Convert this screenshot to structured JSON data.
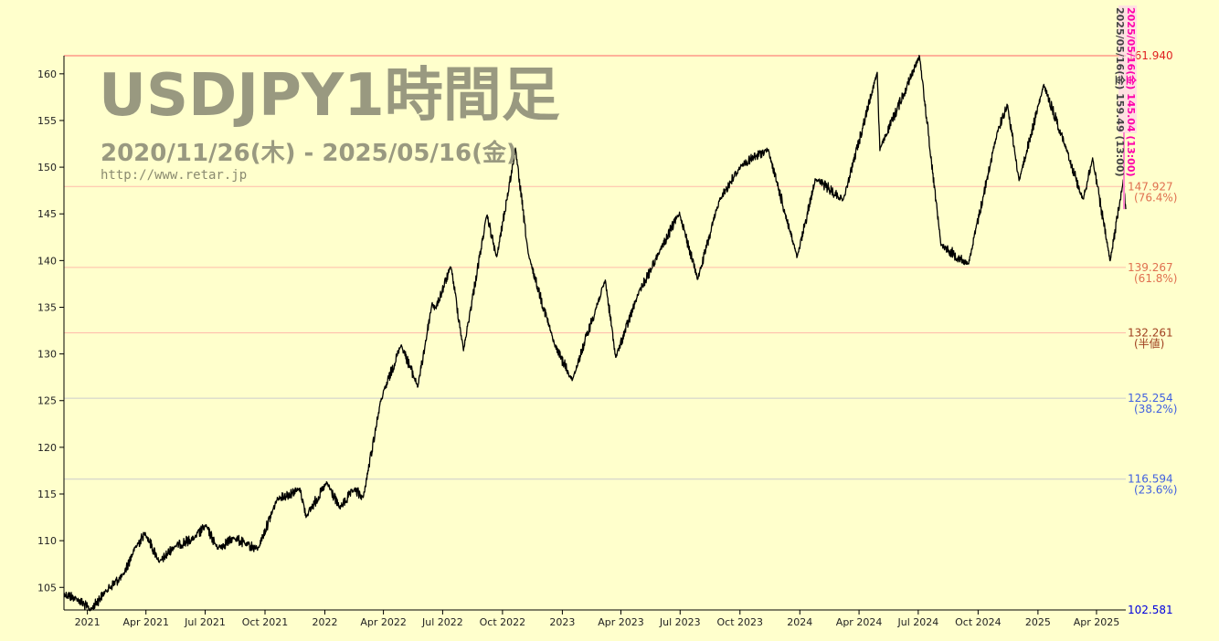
{
  "header": {
    "title": "USDJPY1時間足",
    "period": "2020/11/26(木) - 2025/05/16(金)",
    "site": "http://www.retar.jp"
  },
  "colors": {
    "background": "#ffffcc",
    "price_line": "#000000",
    "high_line": "#ff6666",
    "fib_warm": "#ff8866",
    "fib_mid": "#ffbbaa",
    "fib_cool": "#aaaacc",
    "pct_red": "#e06040",
    "pct_brown": "#a05030",
    "pct_blue": "#4060e0",
    "low_blue": "#0000dd",
    "marker_pink": "#ff00aa"
  },
  "marker_labels": [
    "2025/05/16(金) 159.49  (13:00)",
    "2025/05/16(金) 145.04  (13:00)"
  ],
  "chart_data": {
    "type": "line",
    "title": "USDJPY1時間足",
    "subtitle": "2020/11/26(木) - 2025/05/16(金)",
    "xlabel": "",
    "ylabel": "",
    "x_range": [
      "2020-11-26",
      "2025-05-16"
    ],
    "ylim": [
      102.581,
      161.94
    ],
    "grid": false,
    "y_ticks": [
      105,
      110,
      115,
      120,
      125,
      130,
      135,
      140,
      145,
      150,
      155,
      160
    ],
    "x_ticks": [
      {
        "date": "2021-01-01",
        "label": "2021"
      },
      {
        "date": "2021-04-01",
        "label": "Apr 2021"
      },
      {
        "date": "2021-07-01",
        "label": "Jul 2021"
      },
      {
        "date": "2021-10-01",
        "label": "Oct 2021"
      },
      {
        "date": "2022-01-01",
        "label": "2022"
      },
      {
        "date": "2022-04-01",
        "label": "Apr 2022"
      },
      {
        "date": "2022-07-01",
        "label": "Jul 2022"
      },
      {
        "date": "2022-10-01",
        "label": "Oct 2022"
      },
      {
        "date": "2023-01-01",
        "label": "2023"
      },
      {
        "date": "2023-04-01",
        "label": "Apr 2023"
      },
      {
        "date": "2023-07-01",
        "label": "Jul 2023"
      },
      {
        "date": "2023-10-01",
        "label": "Oct 2023"
      },
      {
        "date": "2024-01-01",
        "label": "2024"
      },
      {
        "date": "2024-04-01",
        "label": "Apr 2024"
      },
      {
        "date": "2024-07-01",
        "label": "Jul 2024"
      },
      {
        "date": "2024-10-01",
        "label": "Oct 2024"
      },
      {
        "date": "2025-01-01",
        "label": "2025"
      },
      {
        "date": "2025-04-01",
        "label": "Apr 2025"
      }
    ],
    "levels": [
      {
        "value": 161.94,
        "price_label": "161.940",
        "pct_label": "",
        "price_color": "#e02020",
        "line_color": "#ff6666"
      },
      {
        "value": 147.927,
        "price_label": "147.927",
        "pct_label": "(76.4%)",
        "price_color": "#e07050",
        "line_color": "#ffbbaa"
      },
      {
        "value": 139.267,
        "price_label": "139.267",
        "pct_label": "(61.8%)",
        "price_color": "#e07050",
        "line_color": "#ffbbaa"
      },
      {
        "value": 132.261,
        "price_label": "132.261",
        "pct_label": "(半値)",
        "price_color": "#a04020",
        "line_color": "#ffbbaa"
      },
      {
        "value": 125.254,
        "price_label": "125.254",
        "pct_label": "(38.2%)",
        "price_color": "#4060e0",
        "line_color": "#cccccc"
      },
      {
        "value": 116.594,
        "price_label": "116.594",
        "pct_label": "(23.6%)",
        "price_color": "#4060e0",
        "line_color": "#cccccc"
      },
      {
        "value": 102.581,
        "price_label": "102.581",
        "pct_label": "",
        "price_color": "#0000dd",
        "line_color": "#000000"
      }
    ],
    "series": [
      {
        "color": "#000000",
        "points": [
          [
            "2020-11-26",
            104.3
          ],
          [
            "2020-12-15",
            103.8
          ],
          [
            "2021-01-06",
            102.6
          ],
          [
            "2021-01-29",
            104.6
          ],
          [
            "2021-02-25",
            106.3
          ],
          [
            "2021-03-15",
            109.2
          ],
          [
            "2021-03-31",
            110.8
          ],
          [
            "2021-04-22",
            107.7
          ],
          [
            "2021-05-15",
            109.4
          ],
          [
            "2021-06-15",
            110.3
          ],
          [
            "2021-07-02",
            111.6
          ],
          [
            "2021-07-20",
            109.2
          ],
          [
            "2021-08-15",
            110.3
          ],
          [
            "2021-09-02",
            109.6
          ],
          [
            "2021-09-20",
            109.1
          ],
          [
            "2021-10-20",
            114.5
          ],
          [
            "2021-11-24",
            115.5
          ],
          [
            "2021-12-03",
            112.6
          ],
          [
            "2022-01-04",
            116.2
          ],
          [
            "2022-01-24",
            113.5
          ],
          [
            "2022-02-15",
            115.5
          ],
          [
            "2022-03-01",
            114.6
          ],
          [
            "2022-03-28",
            125.0
          ],
          [
            "2022-04-28",
            131.0
          ],
          [
            "2022-05-24",
            126.5
          ],
          [
            "2022-06-15",
            135.5
          ],
          [
            "2022-06-20",
            134.8
          ],
          [
            "2022-07-14",
            139.4
          ],
          [
            "2022-08-02",
            130.4
          ],
          [
            "2022-09-07",
            144.9
          ],
          [
            "2022-09-22",
            140.3
          ],
          [
            "2022-10-21",
            151.9
          ],
          [
            "2022-11-10",
            140.5
          ],
          [
            "2022-12-20",
            131.0
          ],
          [
            "2023-01-16",
            127.2
          ],
          [
            "2023-03-08",
            137.9
          ],
          [
            "2023-03-24",
            129.6
          ],
          [
            "2023-04-28",
            136.5
          ],
          [
            "2023-05-30",
            140.9
          ],
          [
            "2023-06-30",
            145.1
          ],
          [
            "2023-07-28",
            138.0
          ],
          [
            "2023-08-31",
            146.6
          ],
          [
            "2023-10-03",
            150.2
          ],
          [
            "2023-11-13",
            151.9
          ],
          [
            "2023-12-28",
            140.3
          ],
          [
            "2024-01-25",
            148.8
          ],
          [
            "2024-03-08",
            146.5
          ],
          [
            "2024-04-29",
            160.2
          ],
          [
            "2024-05-03",
            151.9
          ],
          [
            "2024-07-03",
            161.9
          ],
          [
            "2024-08-05",
            141.7
          ],
          [
            "2024-09-16",
            139.6
          ],
          [
            "2024-10-31",
            153.9
          ],
          [
            "2024-11-15",
            156.7
          ],
          [
            "2024-12-03",
            148.6
          ],
          [
            "2025-01-10",
            158.8
          ],
          [
            "2025-02-13",
            152.1
          ],
          [
            "2025-03-11",
            146.5
          ],
          [
            "2025-03-26",
            150.9
          ],
          [
            "2025-04-22",
            139.9
          ],
          [
            "2025-05-12",
            148.6
          ],
          [
            "2025-05-16",
            145.5
          ]
        ]
      }
    ]
  }
}
